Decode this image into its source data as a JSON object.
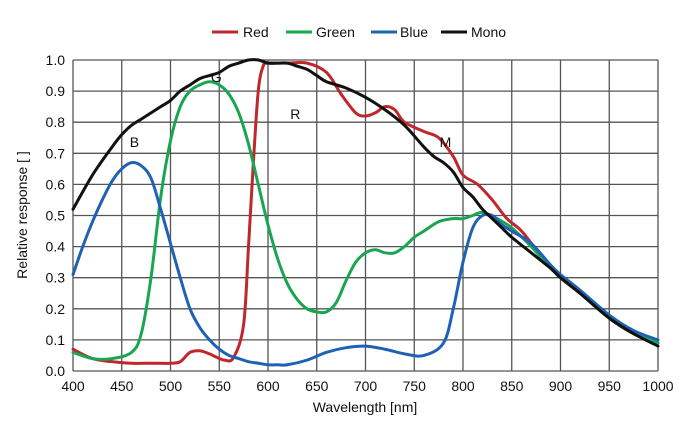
{
  "chart_data": {
    "type": "line",
    "title": "",
    "xlabel": "Wavelength [nm]",
    "ylabel": "Relative response [ ]",
    "xlim": [
      400,
      1000
    ],
    "ylim": [
      0,
      1.0
    ],
    "x_ticks": [
      "400",
      "450",
      "500",
      "550",
      "600",
      "650",
      "700",
      "750",
      "800",
      "850",
      "900",
      "950",
      "1000"
    ],
    "y_ticks": [
      "0.0",
      "0.1",
      "0.2",
      "0.3",
      "0.4",
      "0.5",
      "0.6",
      "0.7",
      "0.8",
      "0.9",
      "1.0"
    ],
    "grid": true,
    "legend_position": "top",
    "annotations": [
      {
        "text": "G",
        "x": 547,
        "y": 0.93
      },
      {
        "text": "R",
        "x": 628,
        "y": 0.81
      },
      {
        "text": "B",
        "x": 463,
        "y": 0.72
      },
      {
        "text": "M",
        "x": 782,
        "y": 0.72
      }
    ],
    "series": [
      {
        "name": "Red",
        "color": "#c0272d",
        "points": [
          [
            400,
            0.07
          ],
          [
            420,
            0.04
          ],
          [
            440,
            0.03
          ],
          [
            460,
            0.025
          ],
          [
            480,
            0.025
          ],
          [
            500,
            0.025
          ],
          [
            510,
            0.03
          ],
          [
            520,
            0.06
          ],
          [
            530,
            0.065
          ],
          [
            540,
            0.055
          ],
          [
            555,
            0.035
          ],
          [
            565,
            0.045
          ],
          [
            575,
            0.15
          ],
          [
            580,
            0.4
          ],
          [
            585,
            0.67
          ],
          [
            590,
            0.9
          ],
          [
            595,
            0.98
          ],
          [
            600,
            0.99
          ],
          [
            610,
            0.99
          ],
          [
            620,
            0.99
          ],
          [
            640,
            0.99
          ],
          [
            660,
            0.96
          ],
          [
            675,
            0.89
          ],
          [
            690,
            0.83
          ],
          [
            700,
            0.82
          ],
          [
            710,
            0.83
          ],
          [
            720,
            0.85
          ],
          [
            730,
            0.84
          ],
          [
            740,
            0.8
          ],
          [
            760,
            0.77
          ],
          [
            775,
            0.75
          ],
          [
            790,
            0.69
          ],
          [
            800,
            0.63
          ],
          [
            815,
            0.6
          ],
          [
            830,
            0.55
          ],
          [
            845,
            0.49
          ],
          [
            860,
            0.45
          ],
          [
            880,
            0.37
          ],
          [
            900,
            0.3
          ],
          [
            920,
            0.25
          ],
          [
            950,
            0.17
          ],
          [
            975,
            0.12
          ],
          [
            1000,
            0.09
          ]
        ]
      },
      {
        "name": "Green",
        "color": "#1aa650",
        "points": [
          [
            400,
            0.06
          ],
          [
            420,
            0.04
          ],
          [
            440,
            0.04
          ],
          [
            460,
            0.06
          ],
          [
            470,
            0.12
          ],
          [
            480,
            0.3
          ],
          [
            490,
            0.56
          ],
          [
            500,
            0.74
          ],
          [
            510,
            0.85
          ],
          [
            520,
            0.9
          ],
          [
            530,
            0.92
          ],
          [
            540,
            0.93
          ],
          [
            550,
            0.92
          ],
          [
            560,
            0.89
          ],
          [
            570,
            0.83
          ],
          [
            580,
            0.73
          ],
          [
            590,
            0.6
          ],
          [
            600,
            0.47
          ],
          [
            610,
            0.36
          ],
          [
            620,
            0.28
          ],
          [
            630,
            0.23
          ],
          [
            640,
            0.2
          ],
          [
            650,
            0.19
          ],
          [
            660,
            0.19
          ],
          [
            670,
            0.22
          ],
          [
            680,
            0.29
          ],
          [
            690,
            0.35
          ],
          [
            700,
            0.38
          ],
          [
            710,
            0.39
          ],
          [
            720,
            0.38
          ],
          [
            730,
            0.38
          ],
          [
            740,
            0.4
          ],
          [
            750,
            0.43
          ],
          [
            760,
            0.45
          ],
          [
            775,
            0.48
          ],
          [
            790,
            0.49
          ],
          [
            800,
            0.49
          ],
          [
            810,
            0.5
          ],
          [
            820,
            0.51
          ],
          [
            835,
            0.49
          ],
          [
            850,
            0.46
          ],
          [
            870,
            0.4
          ],
          [
            890,
            0.33
          ],
          [
            900,
            0.3
          ],
          [
            920,
            0.25
          ],
          [
            950,
            0.17
          ],
          [
            975,
            0.12
          ],
          [
            1000,
            0.09
          ]
        ]
      },
      {
        "name": "Blue",
        "color": "#1f62b4",
        "points": [
          [
            400,
            0.31
          ],
          [
            410,
            0.4
          ],
          [
            420,
            0.48
          ],
          [
            430,
            0.55
          ],
          [
            440,
            0.61
          ],
          [
            450,
            0.65
          ],
          [
            460,
            0.67
          ],
          [
            470,
            0.66
          ],
          [
            480,
            0.62
          ],
          [
            490,
            0.52
          ],
          [
            500,
            0.41
          ],
          [
            510,
            0.3
          ],
          [
            520,
            0.2
          ],
          [
            530,
            0.14
          ],
          [
            540,
            0.1
          ],
          [
            550,
            0.07
          ],
          [
            560,
            0.05
          ],
          [
            570,
            0.04
          ],
          [
            580,
            0.03
          ],
          [
            590,
            0.025
          ],
          [
            600,
            0.02
          ],
          [
            610,
            0.02
          ],
          [
            620,
            0.02
          ],
          [
            640,
            0.035
          ],
          [
            660,
            0.06
          ],
          [
            680,
            0.075
          ],
          [
            700,
            0.08
          ],
          [
            720,
            0.07
          ],
          [
            740,
            0.055
          ],
          [
            760,
            0.05
          ],
          [
            780,
            0.09
          ],
          [
            790,
            0.2
          ],
          [
            800,
            0.35
          ],
          [
            810,
            0.46
          ],
          [
            820,
            0.5
          ],
          [
            830,
            0.5
          ],
          [
            840,
            0.47
          ],
          [
            850,
            0.45
          ],
          [
            870,
            0.41
          ],
          [
            890,
            0.34
          ],
          [
            900,
            0.31
          ],
          [
            920,
            0.26
          ],
          [
            950,
            0.18
          ],
          [
            975,
            0.13
          ],
          [
            1000,
            0.1
          ]
        ]
      },
      {
        "name": "Mono",
        "color": "#111111",
        "points": [
          [
            400,
            0.52
          ],
          [
            420,
            0.63
          ],
          [
            440,
            0.72
          ],
          [
            450,
            0.76
          ],
          [
            460,
            0.79
          ],
          [
            470,
            0.81
          ],
          [
            480,
            0.83
          ],
          [
            490,
            0.85
          ],
          [
            500,
            0.87
          ],
          [
            510,
            0.9
          ],
          [
            520,
            0.92
          ],
          [
            530,
            0.94
          ],
          [
            540,
            0.95
          ],
          [
            550,
            0.96
          ],
          [
            560,
            0.98
          ],
          [
            570,
            0.99
          ],
          [
            580,
            1.0
          ],
          [
            590,
            1.0
          ],
          [
            600,
            0.99
          ],
          [
            610,
            0.99
          ],
          [
            620,
            0.99
          ],
          [
            630,
            0.98
          ],
          [
            640,
            0.97
          ],
          [
            650,
            0.95
          ],
          [
            660,
            0.93
          ],
          [
            680,
            0.91
          ],
          [
            700,
            0.88
          ],
          [
            720,
            0.84
          ],
          [
            740,
            0.79
          ],
          [
            760,
            0.72
          ],
          [
            770,
            0.69
          ],
          [
            780,
            0.67
          ],
          [
            790,
            0.64
          ],
          [
            800,
            0.59
          ],
          [
            810,
            0.56
          ],
          [
            820,
            0.52
          ],
          [
            830,
            0.49
          ],
          [
            840,
            0.46
          ],
          [
            850,
            0.43
          ],
          [
            870,
            0.38
          ],
          [
            890,
            0.33
          ],
          [
            900,
            0.3
          ],
          [
            920,
            0.25
          ],
          [
            950,
            0.17
          ],
          [
            975,
            0.12
          ],
          [
            1000,
            0.08
          ]
        ]
      }
    ]
  }
}
